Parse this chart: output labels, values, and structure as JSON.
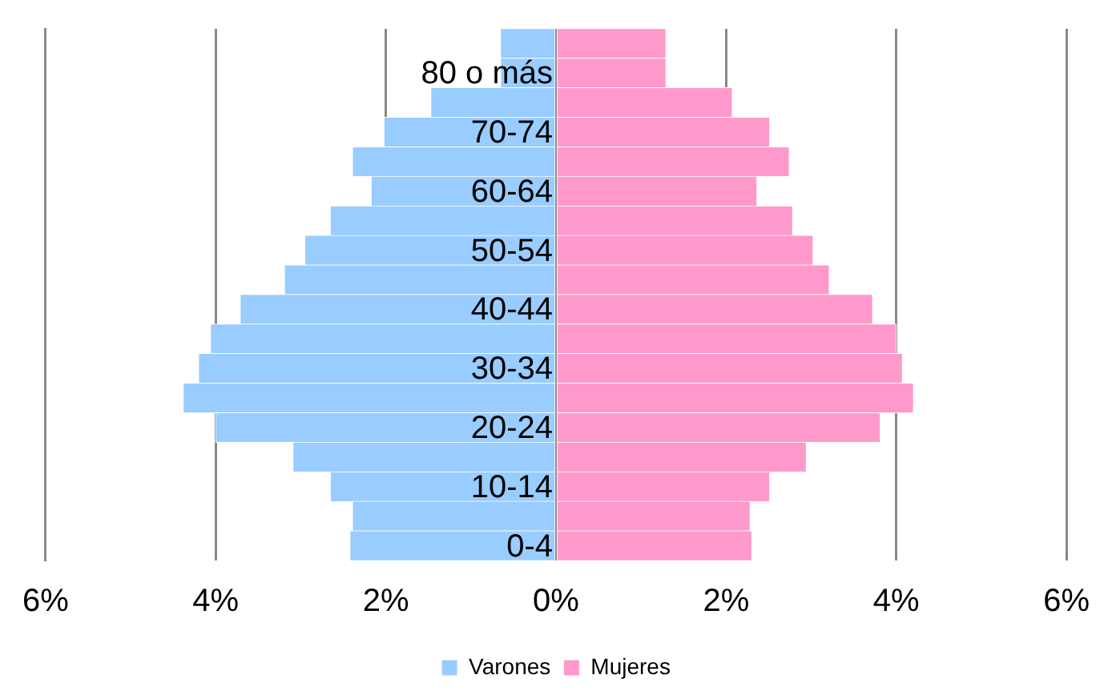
{
  "chart_data": {
    "type": "bar",
    "orientation": "horizontal",
    "stacked": true,
    "categories": [
      null,
      "80 o más",
      null,
      "70-74",
      null,
      "60-64",
      null,
      "50-54",
      null,
      "40-44",
      null,
      "30-34",
      null,
      "20-24",
      null,
      "10-14",
      null,
      "0-4"
    ],
    "series": [
      {
        "name": "Varones",
        "color": "#99ccff",
        "values": [
          -0.65,
          -0.65,
          -1.47,
          -2.02,
          -2.39,
          -2.17,
          -2.65,
          -2.95,
          -3.19,
          -3.71,
          -4.06,
          -4.2,
          -4.38,
          -4.0,
          -3.09,
          -2.65,
          -2.39,
          -2.42
        ]
      },
      {
        "name": "Mujeres",
        "color": "#ff99cc",
        "values": [
          1.29,
          1.29,
          2.07,
          2.51,
          2.74,
          2.36,
          2.78,
          3.02,
          3.21,
          3.72,
          4.0,
          4.07,
          4.2,
          3.81,
          2.94,
          2.51,
          2.28,
          2.3
        ]
      }
    ],
    "xlim": [
      -6,
      6
    ],
    "xticks": [
      {
        "value": -6,
        "label": "6%"
      },
      {
        "value": -4,
        "label": "4%"
      },
      {
        "value": -2,
        "label": "2%"
      },
      {
        "value": 0,
        "label": "0%"
      },
      {
        "value": 2,
        "label": "2%"
      },
      {
        "value": 4,
        "label": "4%"
      },
      {
        "value": 6,
        "label": "6%"
      }
    ],
    "grid": "x",
    "legend": "bottom"
  }
}
